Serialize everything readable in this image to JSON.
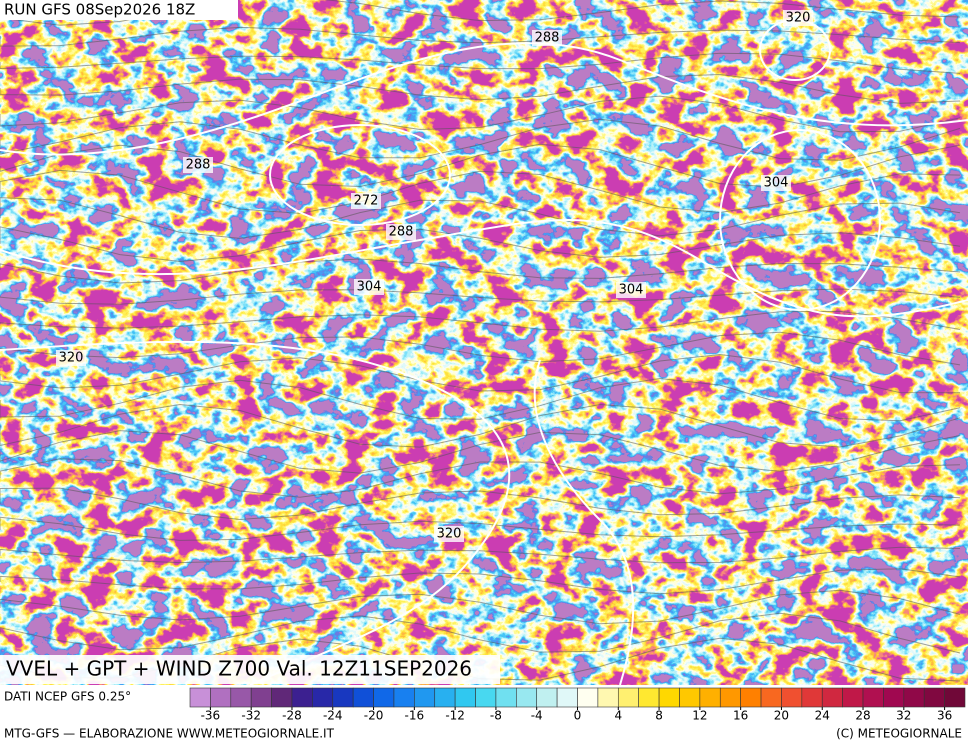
{
  "header": {
    "run": "RUN GFS 08Sep2026 18Z"
  },
  "map": {
    "title": "VVEL + GPT + WIND Z700 Val. 12Z11SEP2026",
    "contour_labels": [
      320,
      288,
      288,
      272,
      288,
      304,
      304,
      304,
      320,
      320
    ]
  },
  "colorbar": {
    "ticks": [
      -36,
      -32,
      -28,
      -24,
      -20,
      -16,
      -12,
      -8,
      -4,
      0,
      4,
      8,
      12,
      16,
      20,
      24,
      28,
      32,
      36
    ],
    "colors": [
      "#c890d8",
      "#b070c0",
      "#9858a8",
      "#804090",
      "#602878",
      "#3c2090",
      "#2828a8",
      "#1838c0",
      "#1050d8",
      "#1068e8",
      "#1880f0",
      "#2098f0",
      "#28b0f0",
      "#30c8f0",
      "#48d8f0",
      "#70e0f0",
      "#98e8f0",
      "#c0f0f0",
      "#e0f8f8",
      "#fffff0",
      "#fff8b0",
      "#fff070",
      "#ffe830",
      "#ffd800",
      "#ffc800",
      "#ffb000",
      "#ff9800",
      "#ff8000",
      "#f86820",
      "#f05030",
      "#e03838",
      "#d02840",
      "#c01848",
      "#b01050",
      "#a00850",
      "#900848",
      "#800840",
      "#700838"
    ]
  },
  "footer": {
    "source": "DATI NCEP GFS 0.25°",
    "credit": "MTG-GFS — ELABORAZIONE WWW.METEOGIORNALE.IT",
    "copyright": "(C) METEOGIORNALE"
  }
}
